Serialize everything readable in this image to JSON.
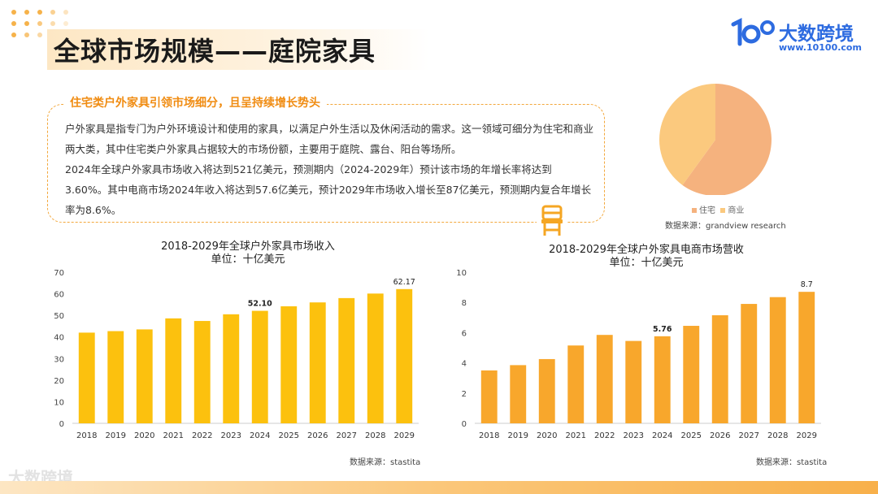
{
  "header": {
    "title": "全球市场规模——庭院家具"
  },
  "logo": {
    "name": "大数跨境",
    "url": "www.10100.com",
    "brand_color": "#2d6be0"
  },
  "intro": {
    "heading": "住宅类户外家具引领市场细分，且呈持续增长势头",
    "paragraphs": [
      "户外家具是指专门为户外环境设计和使用的家具，以满足户外生活以及休闲活动的需求。这一领域可细分为住宅和商业两大类，其中住宅类户外家具占据较大的市场份额，主要用于庭院、露台、阳台等场所。",
      "2024年全球户外家具市场收入将达到521亿美元，预测期内（2024-2029年）预计该市场的年增长率将达到3.60%。其中电商市场2024年收入将达到57.6亿美元，预计2029年市场收入增长至87亿美元，预测期内复合年增长率为8.6%。"
    ]
  },
  "pie_source": "数据来源：grandview research",
  "charts_source": "数据来源：stastita",
  "watermark": "大数跨境",
  "chart_data": [
    {
      "type": "pie",
      "title": "",
      "slices": [
        {
          "label": "住宅",
          "value": 60,
          "color": "#f5b27e"
        },
        {
          "label": "商业",
          "value": 40,
          "color": "#fbc97e"
        }
      ]
    },
    {
      "type": "bar",
      "title": "2018-2029年全球户外家具市场收入",
      "subtitle": "单位：十亿美元",
      "categories": [
        "2018",
        "2019",
        "2020",
        "2021",
        "2022",
        "2023",
        "2024",
        "2025",
        "2026",
        "2027",
        "2028",
        "2029"
      ],
      "values": [
        42.0,
        42.7,
        43.5,
        48.6,
        47.4,
        50.5,
        52.1,
        54.2,
        56.0,
        58.0,
        60.1,
        62.17
      ],
      "data_labels": {
        "6": "52.10",
        "11": "62.17"
      },
      "ylim": [
        0,
        70
      ],
      "yticks": [
        0,
        10,
        20,
        30,
        40,
        50,
        60,
        70
      ],
      "color": "#fcc10e"
    },
    {
      "type": "bar",
      "title": "2018-2029年全球户外家具电商市场营收",
      "subtitle": "单位：十亿美元",
      "categories": [
        "2018",
        "2019",
        "2020",
        "2021",
        "2022",
        "2023",
        "2024",
        "2025",
        "2026",
        "2027",
        "2028",
        "2029"
      ],
      "values": [
        3.5,
        3.85,
        4.25,
        5.15,
        5.85,
        5.45,
        5.76,
        6.45,
        7.15,
        7.9,
        8.35,
        8.7
      ],
      "data_labels": {
        "6": "5.76",
        "11": "8.7"
      },
      "ylim": [
        0,
        10
      ],
      "yticks": [
        0,
        2,
        4,
        6,
        8,
        10
      ],
      "color": "#f8a72c"
    }
  ]
}
